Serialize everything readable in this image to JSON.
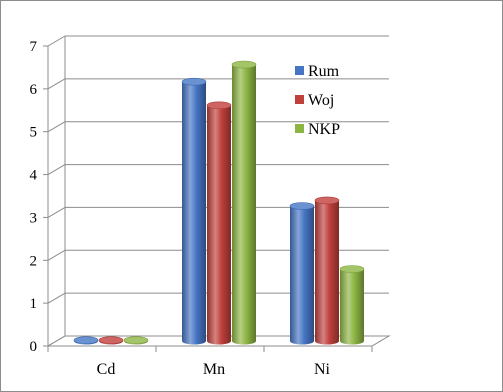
{
  "chart_data": {
    "type": "bar",
    "style": "3d-cylinder",
    "categories": [
      "Cd",
      "Mn",
      "Ni"
    ],
    "series": [
      {
        "name": "Rum",
        "values": [
          0.02,
          6.05,
          3.15
        ]
      },
      {
        "name": "Woj",
        "values": [
          0.02,
          5.5,
          3.28
        ]
      },
      {
        "name": "NKP",
        "values": [
          0.02,
          6.45,
          1.68
        ]
      }
    ],
    "ylim": [
      0,
      7
    ],
    "yticks": [
      0,
      1,
      2,
      3,
      4,
      5,
      6,
      7
    ],
    "grid": true,
    "legend_position": "right",
    "colors": [
      "#4575c4",
      "#c0403c",
      "#8db543"
    ]
  }
}
